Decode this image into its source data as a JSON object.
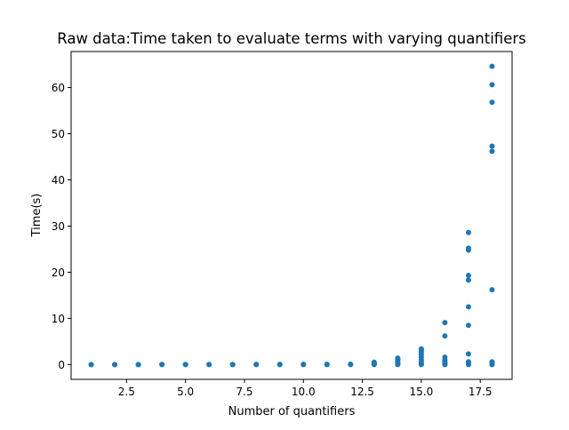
{
  "chart_data": {
    "type": "scatter",
    "title": "Raw data:Time taken to evaluate terms with varying quantifiers",
    "xlabel": "Number of quantifiers",
    "ylabel": "Time(s)",
    "xlim": [
      0.15,
      18.85
    ],
    "ylim": [
      -3.2,
      67.8
    ],
    "xticks": [
      2.5,
      5.0,
      7.5,
      10.0,
      12.5,
      15.0,
      17.5
    ],
    "xtick_labels": [
      "2.5",
      "5.0",
      "7.5",
      "10.0",
      "12.5",
      "15.0",
      "17.5"
    ],
    "yticks": [
      0,
      10,
      20,
      30,
      40,
      50,
      60
    ],
    "ytick_labels": [
      "0",
      "10",
      "20",
      "30",
      "40",
      "50",
      "60"
    ],
    "grid": false,
    "marker_color": "#1f77b4",
    "series": [
      {
        "points": [
          [
            1,
            0.0
          ],
          [
            1,
            0.01
          ],
          [
            2,
            0.0
          ],
          [
            2,
            0.01
          ],
          [
            3,
            0.0
          ],
          [
            3,
            0.01
          ],
          [
            4,
            0.0
          ],
          [
            4,
            0.02
          ],
          [
            5,
            0.0
          ],
          [
            5,
            0.02
          ],
          [
            6,
            0.0
          ],
          [
            6,
            0.03
          ],
          [
            7,
            0.0
          ],
          [
            7,
            0.03
          ],
          [
            8,
            0.0
          ],
          [
            8,
            0.04
          ],
          [
            9,
            0.0
          ],
          [
            9,
            0.05
          ],
          [
            10,
            0.0
          ],
          [
            10,
            0.06
          ],
          [
            11,
            0.0
          ],
          [
            11,
            0.08
          ],
          [
            12,
            0.0
          ],
          [
            12,
            0.1
          ],
          [
            13,
            0.0
          ],
          [
            13,
            0.1
          ],
          [
            13,
            0.3
          ],
          [
            13,
            0.5
          ],
          [
            14,
            0.0
          ],
          [
            14,
            0.1
          ],
          [
            14,
            0.3
          ],
          [
            14,
            0.5
          ],
          [
            14,
            0.8
          ],
          [
            14,
            1.1
          ],
          [
            14,
            1.4
          ],
          [
            15,
            0.0
          ],
          [
            15,
            0.2
          ],
          [
            15,
            0.5
          ],
          [
            15,
            1.0
          ],
          [
            15,
            1.6
          ],
          [
            15,
            2.2
          ],
          [
            15,
            2.7
          ],
          [
            15,
            3.1
          ],
          [
            15,
            3.4
          ],
          [
            16,
            0.0
          ],
          [
            16,
            0.1
          ],
          [
            16,
            0.3
          ],
          [
            16,
            0.6
          ],
          [
            16,
            1.0
          ],
          [
            16,
            1.6
          ],
          [
            16,
            6.2
          ],
          [
            16,
            9.1
          ],
          [
            17,
            0.0
          ],
          [
            17,
            0.1
          ],
          [
            17,
            0.3
          ],
          [
            17,
            0.6
          ],
          [
            17,
            2.3
          ],
          [
            17,
            8.5
          ],
          [
            17,
            12.5
          ],
          [
            17,
            18.3
          ],
          [
            17,
            19.3
          ],
          [
            17,
            24.8
          ],
          [
            17,
            25.2
          ],
          [
            17,
            28.6
          ],
          [
            18,
            0.0
          ],
          [
            18,
            0.1
          ],
          [
            18,
            0.3
          ],
          [
            18,
            0.6
          ],
          [
            18,
            16.2
          ],
          [
            18,
            46.2
          ],
          [
            18,
            47.3
          ],
          [
            18,
            56.8
          ],
          [
            18,
            60.6
          ],
          [
            18,
            64.6
          ]
        ]
      }
    ]
  }
}
